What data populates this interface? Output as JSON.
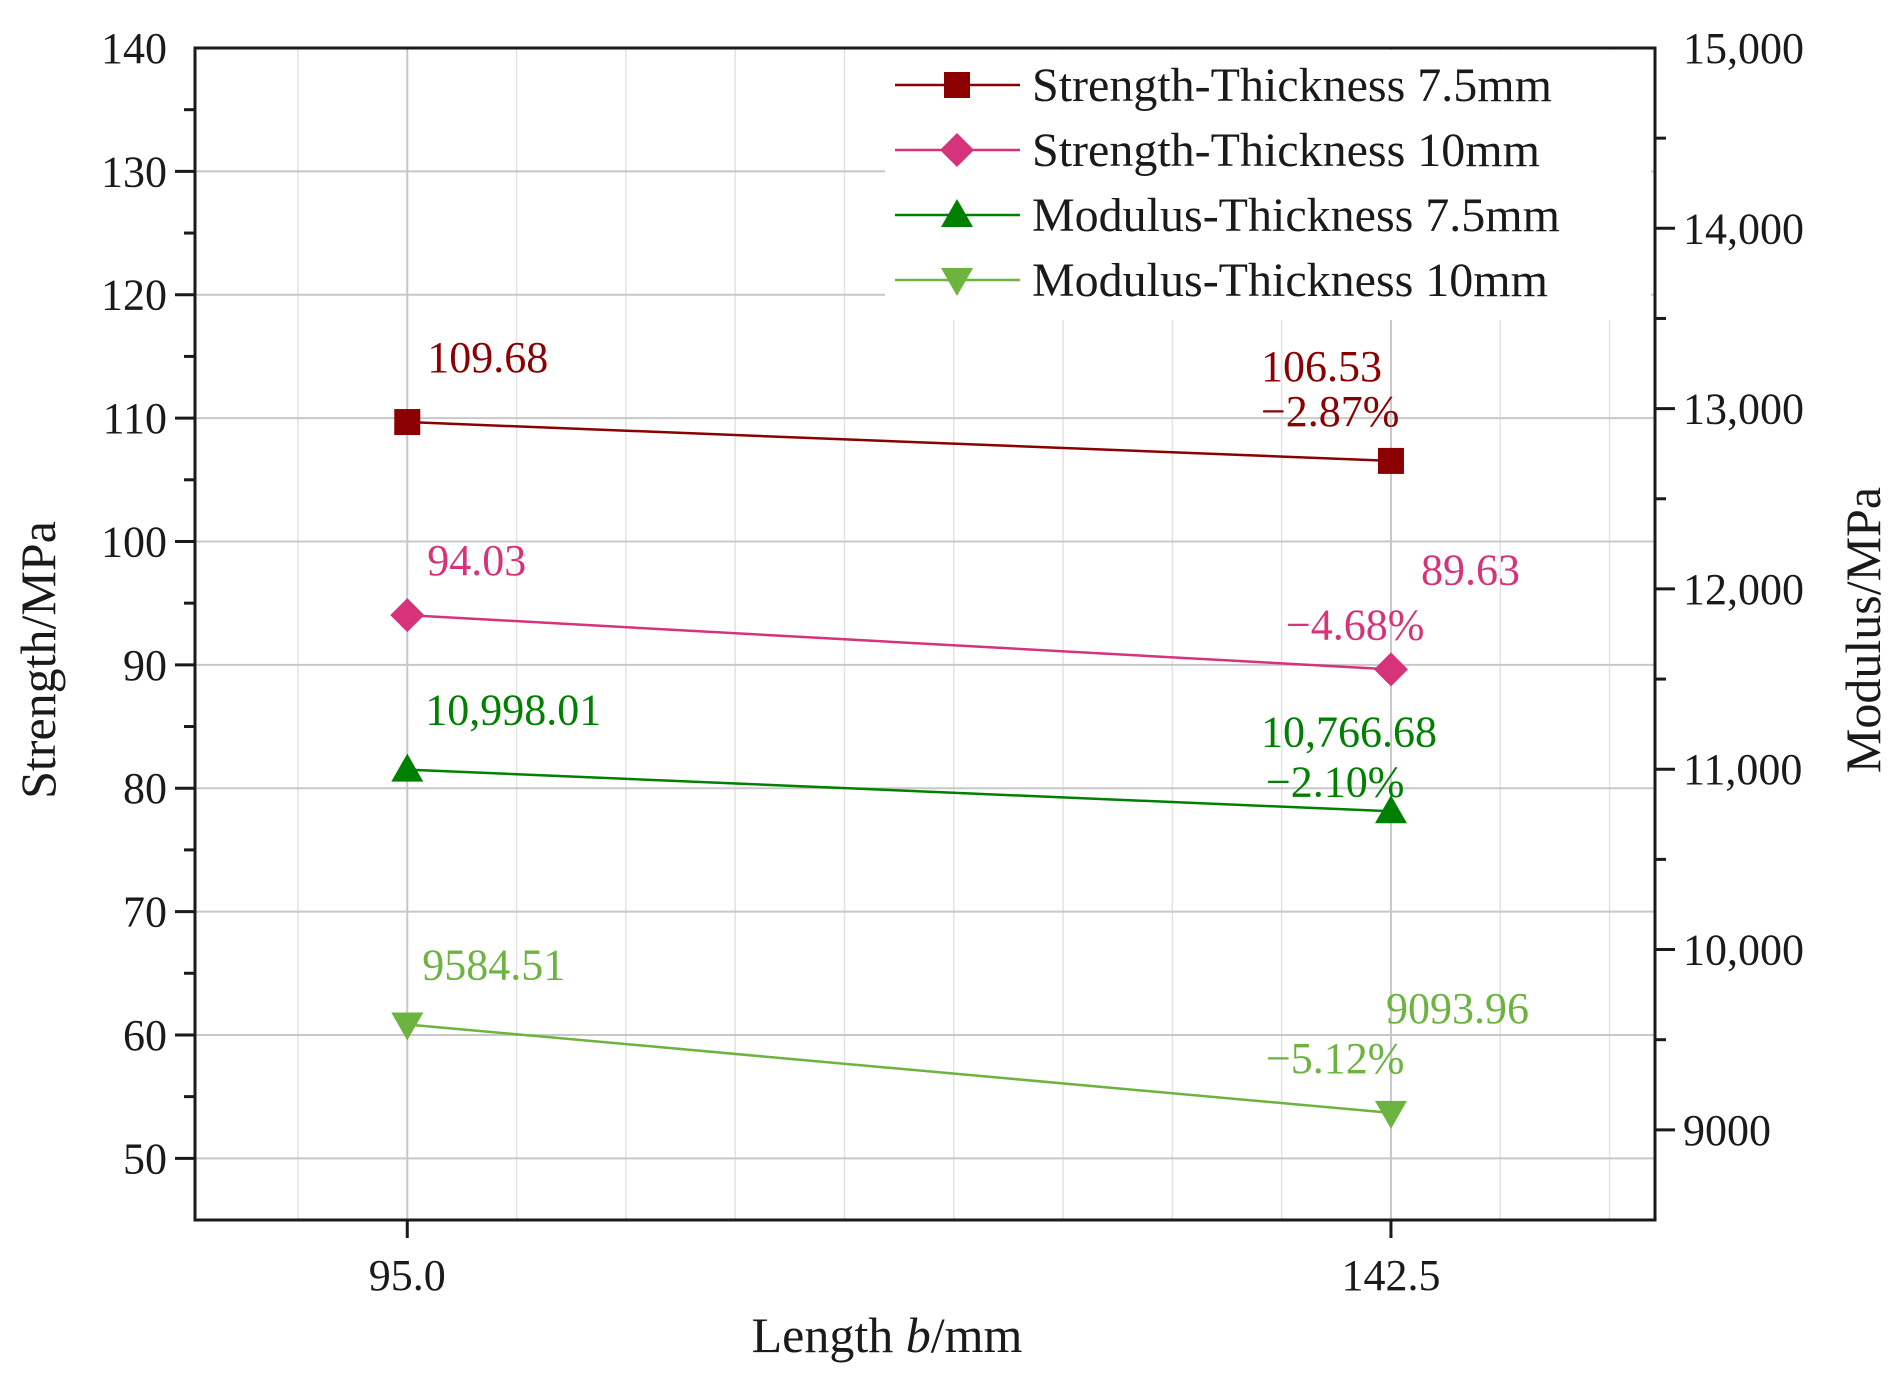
{
  "chart_data": {
    "type": "line",
    "xlabel_prefix": "Length ",
    "xlabel_var": "b",
    "xlabel_suffix": "/mm",
    "ylabel_left": "Strength/MPa",
    "ylabel_right": "Modulus/MPa",
    "x_ticks": [
      "95.0",
      "142.5"
    ],
    "x_values": [
      95.0,
      142.5
    ],
    "xlim": [
      84.75,
      155.25
    ],
    "ylim_left": [
      45,
      140
    ],
    "y_ticks_left": [
      "140",
      "130",
      "120",
      "110",
      "100",
      "90",
      "80",
      "70",
      "60",
      "50"
    ],
    "y_tick_values_left": [
      140,
      130,
      120,
      110,
      100,
      90,
      80,
      70,
      60,
      50
    ],
    "ylim_right": [
      8500,
      15000
    ],
    "y_ticks_right": [
      "15,000",
      "14,000",
      "13,000",
      "12,000",
      "11,000",
      "10,000",
      "9000"
    ],
    "y_tick_values_right": [
      15000,
      14000,
      13000,
      12000,
      11000,
      10000,
      9000
    ],
    "grid": true,
    "legend_position": "top-right",
    "series": [
      {
        "name": "Strength-Thickness 7.5mm",
        "axis": "left",
        "marker": "square",
        "color": "#8B0000",
        "values": [
          109.68,
          106.53
        ],
        "labels": [
          "109.68",
          "106.53"
        ],
        "change": "−2.87%"
      },
      {
        "name": "Strength-Thickness 10mm",
        "axis": "left",
        "marker": "diamond",
        "color": "#D6337A",
        "values": [
          94.03,
          89.63
        ],
        "labels": [
          "94.03",
          "89.63"
        ],
        "change": "−4.68%"
      },
      {
        "name": "Modulus-Thickness 7.5mm",
        "axis": "right",
        "marker": "triangle-up",
        "color": "#008000",
        "values": [
          10998.01,
          10766.68
        ],
        "labels": [
          "10,998.01",
          "10,766.68"
        ],
        "change": "−2.10%"
      },
      {
        "name": "Modulus-Thickness 10mm",
        "axis": "right",
        "marker": "triangle-down",
        "color": "#6DB33F",
        "values": [
          9584.51,
          9093.96
        ],
        "labels": [
          "9584.51",
          "9093.96"
        ],
        "change": "−5.12%"
      }
    ]
  }
}
